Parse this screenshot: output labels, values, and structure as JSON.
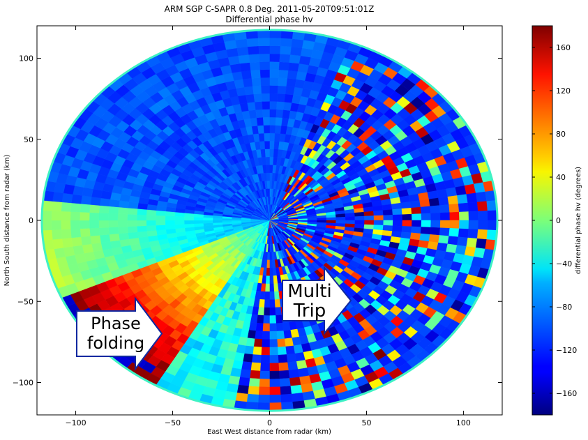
{
  "chart_data": {
    "type": "heatmap",
    "title": "ARM SGP C-SAPR 0.8 Deg. 2011-05-20T09:51:01Z",
    "subtitle": "Differential phase hv",
    "xlabel": "East West distance from radar (km)",
    "ylabel": "North South distance from radar (km)",
    "xlim": [
      -120,
      120
    ],
    "ylim": [
      -120,
      120
    ],
    "x_ticks": [
      -100,
      -50,
      0,
      50,
      100
    ],
    "y_ticks": [
      100,
      50,
      0,
      -50,
      -100
    ],
    "grid": false,
    "colormap": "jet",
    "colorbar": {
      "label": "differential phase hv (degrees)",
      "range": [
        -180,
        180
      ],
      "ticks": [
        160,
        120,
        80,
        40,
        0,
        -40,
        -80,
        -120,
        -160
      ],
      "position": "right"
    },
    "radar_max_range_km": 117.5,
    "annotations": [
      {
        "id": "phase-folding",
        "lines": [
          "Phase",
          "folding"
        ],
        "arrow_direction": "right"
      },
      {
        "id": "multi-trip",
        "lines": [
          "Multi",
          "Trip"
        ],
        "arrow_direction": "right"
      }
    ]
  }
}
